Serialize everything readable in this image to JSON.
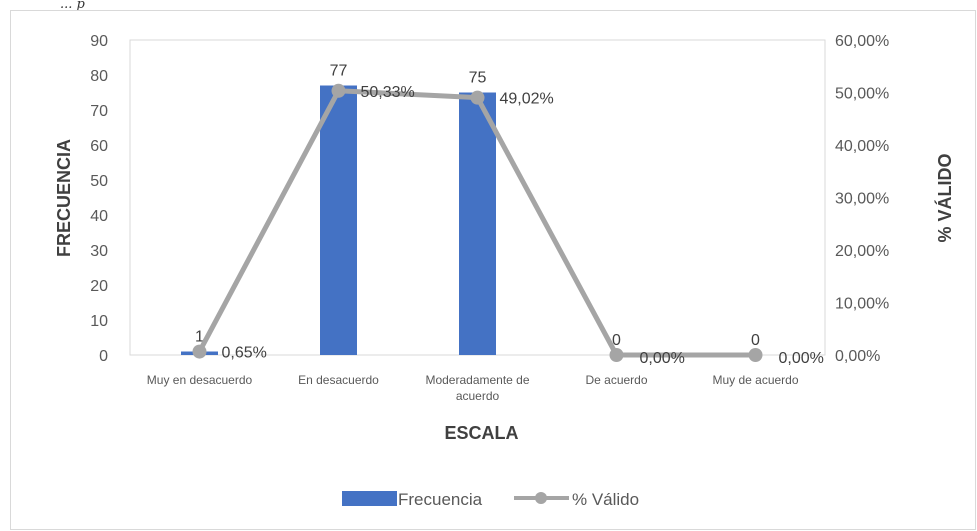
{
  "page_fragment": "... p",
  "chart_data": {
    "type": "bar",
    "title": "",
    "categories": [
      "Muy en desacuerdo",
      "En desacuerdo",
      "Moderadamente de acuerdo",
      "De acuerdo",
      "Muy de acuerdo"
    ],
    "category_labels": [
      [
        "Muy en desacuerdo"
      ],
      [
        "En desacuerdo"
      ],
      [
        "Moderadamente de",
        "acuerdo"
      ],
      [
        "De acuerdo"
      ],
      [
        "Muy de acuerdo"
      ]
    ],
    "series": [
      {
        "name": "Frecuencia",
        "type": "bar",
        "axis": "left",
        "color": "#4472c4",
        "values": [
          1,
          77,
          75,
          0,
          0
        ],
        "labels": [
          "1",
          "77",
          "75",
          "0",
          "0"
        ]
      },
      {
        "name": "% Válido",
        "type": "line",
        "axis": "right",
        "color": "#a5a5a5",
        "values": [
          0.65,
          50.33,
          49.02,
          0.0,
          0.0
        ],
        "labels": [
          "0,65%",
          "50,33%",
          "49,02%",
          "0,00%",
          "0,00%"
        ]
      }
    ],
    "xlabel": "ESCALA",
    "ylabel": "FRECUENCIA",
    "ylabel_right": "% VÁLIDO",
    "ylim": [
      0,
      90
    ],
    "ylim_right": [
      0,
      60
    ],
    "yticks": [
      "0",
      "10",
      "20",
      "30",
      "40",
      "50",
      "60",
      "70",
      "80",
      "90"
    ],
    "yticks_right": [
      "0,00%",
      "10,00%",
      "20,00%",
      "30,00%",
      "40,00%",
      "50,00%",
      "60,00%"
    ],
    "grid": false,
    "legend_position": "bottom"
  }
}
